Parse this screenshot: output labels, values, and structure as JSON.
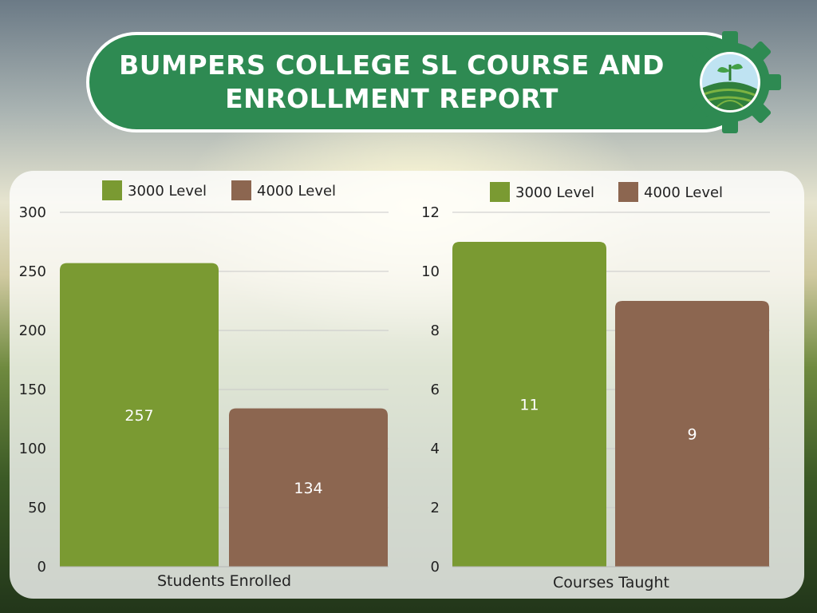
{
  "header": {
    "title": "BUMPERS COLLEGE SL COURSE AND ENROLLMENT REPORT"
  },
  "logo": {
    "icon": "gear-farm-sprout-icon",
    "gear_color": "#2e8a52"
  },
  "colors": {
    "level_3000": "#7a9a32",
    "level_4000": "#8c6650"
  },
  "chart_data": [
    {
      "type": "bar",
      "categories": [
        "Students Enrolled"
      ],
      "series": [
        {
          "name": "3000 Level",
          "values": [
            257
          ]
        },
        {
          "name": "4000 Level",
          "values": [
            134
          ]
        }
      ],
      "xlabel": "Students Enrolled",
      "ylim": [
        0,
        300
      ],
      "yticks": [
        0,
        50,
        100,
        150,
        200,
        250,
        300
      ],
      "grid": true,
      "legend": "top"
    },
    {
      "type": "bar",
      "categories": [
        "Courses Taught"
      ],
      "series": [
        {
          "name": "3000 Level",
          "values": [
            11
          ]
        },
        {
          "name": "4000 Level",
          "values": [
            9
          ]
        }
      ],
      "xlabel": "Courses Taught",
      "ylim": [
        0,
        12
      ],
      "yticks": [
        0,
        2,
        4,
        6,
        8,
        10,
        12
      ],
      "grid": true,
      "legend": "top"
    }
  ]
}
